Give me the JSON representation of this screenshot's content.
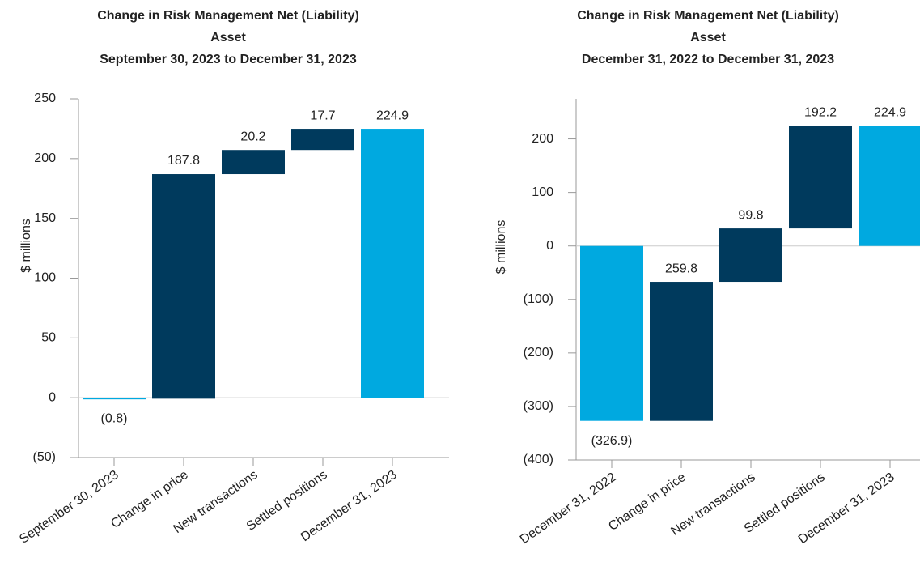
{
  "chart_data": [
    {
      "type": "waterfall",
      "title": [
        "Change in Risk Management Net (Liability)",
        "Asset",
        "September 30, 2023 to December 31, 2023"
      ],
      "ylabel": "$ millions",
      "categories": [
        "September 30, 2023",
        "Change in price",
        "New transactions",
        "Settled positions",
        "December 31, 2023"
      ],
      "values": [
        -0.8,
        187.8,
        20.2,
        17.7,
        224.9
      ],
      "value_labels": [
        "(0.8)",
        "187.8",
        "20.2",
        "17.7",
        "224.9"
      ],
      "colors": [
        "#00a9e0",
        "#003a5d",
        "#003a5d",
        "#003a5d",
        "#00a9e0"
      ],
      "ylim": [
        -50,
        250
      ],
      "yticks": [
        {
          "value": -50,
          "label": "(50)"
        },
        0,
        50,
        100,
        150,
        200,
        250
      ]
    },
    {
      "type": "waterfall",
      "title": [
        "Change in Risk Management Net (Liability)",
        "Asset",
        "December 31, 2022 to December 31, 2023"
      ],
      "ylabel": "$ millions",
      "categories": [
        "December 31, 2022",
        "Change in price",
        "New transactions",
        "Settled positions",
        "December 31, 2023"
      ],
      "values": [
        -326.9,
        259.8,
        99.8,
        192.2,
        224.9
      ],
      "value_labels": [
        "(326.9)",
        "259.8",
        "99.8",
        "192.2",
        "224.9"
      ],
      "colors": [
        "#00a9e0",
        "#003a5d",
        "#003a5d",
        "#003a5d",
        "#00a9e0"
      ],
      "ylim": [
        -400,
        275
      ],
      "yticks": [
        {
          "value": -400,
          "label": "(400)"
        },
        {
          "value": -300,
          "label": "(300)"
        },
        {
          "value": -200,
          "label": "(200)"
        },
        {
          "value": -100,
          "label": "(100)"
        },
        0,
        100,
        200
      ]
    }
  ]
}
